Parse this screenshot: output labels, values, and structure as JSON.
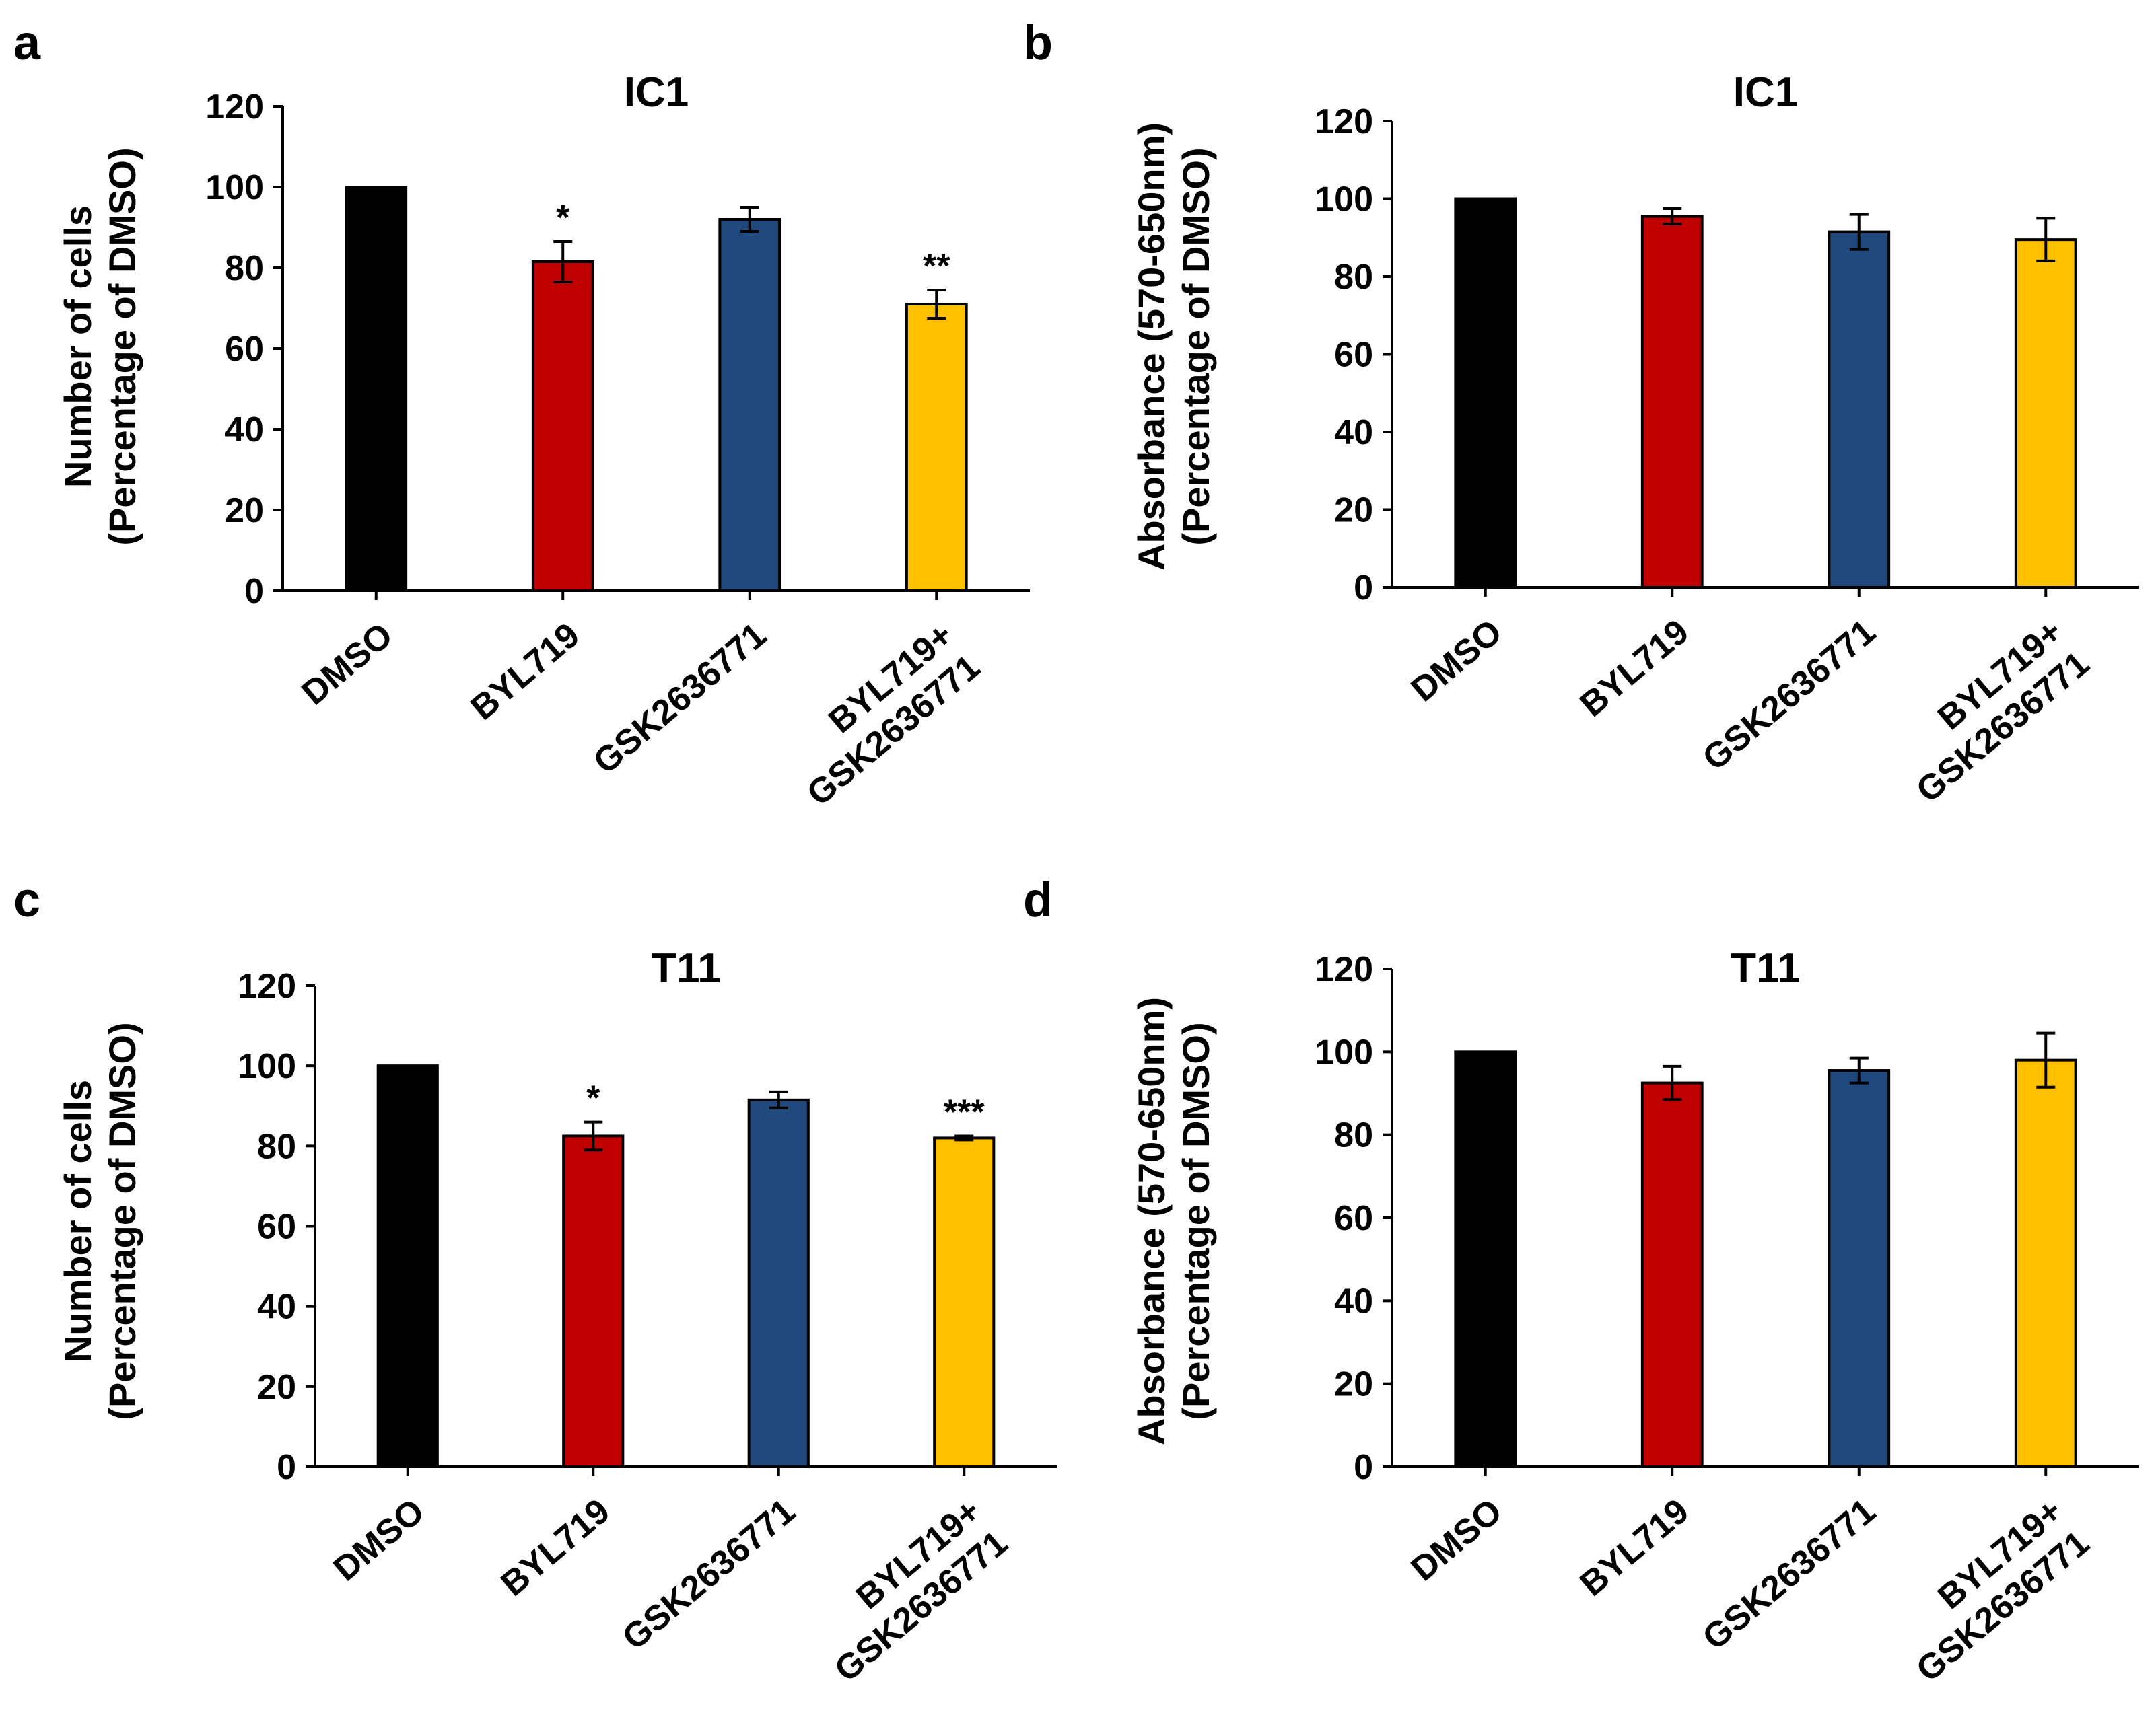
{
  "chart_data": [
    {
      "panel": "a",
      "type": "bar",
      "title": "IC1",
      "ylabel": [
        "Number of cells",
        "(Percentage of DMSO)"
      ],
      "xlabel": "",
      "ylim": [
        0,
        120
      ],
      "yticks": [
        0,
        20,
        40,
        60,
        80,
        100,
        120
      ],
      "categories": [
        [
          "DMSO"
        ],
        [
          "BYL719"
        ],
        [
          "GSK2636771"
        ],
        [
          "BYL719+",
          "GSK2636771"
        ]
      ],
      "values": [
        100,
        81.5,
        92,
        71
      ],
      "errors": [
        0,
        5,
        3,
        3.5
      ],
      "significance": [
        "",
        "*",
        "",
        "**"
      ],
      "colors": [
        "#000000",
        "#c00000",
        "#1f497d",
        "#ffc000"
      ]
    },
    {
      "panel": "b",
      "type": "bar",
      "title": "IC1",
      "ylabel": [
        "Absorbance (570-650nm)",
        "(Percentage of DMSO)"
      ],
      "xlabel": "",
      "ylim": [
        0,
        120
      ],
      "yticks": [
        0,
        20,
        40,
        60,
        80,
        100,
        120
      ],
      "categories": [
        [
          "DMSO"
        ],
        [
          "BYL719"
        ],
        [
          "GSK2636771"
        ],
        [
          "BYL719+",
          "GSK2636771"
        ]
      ],
      "values": [
        100,
        95.5,
        91.5,
        89.5
      ],
      "errors": [
        0,
        2,
        4.5,
        5.5
      ],
      "significance": [
        "",
        "",
        "",
        ""
      ],
      "colors": [
        "#000000",
        "#c00000",
        "#1f497d",
        "#ffc000"
      ]
    },
    {
      "panel": "c",
      "type": "bar",
      "title": "T11",
      "ylabel": [
        "Number of cells",
        "(Percentage of DMSO)"
      ],
      "xlabel": "",
      "ylim": [
        0,
        120
      ],
      "yticks": [
        0,
        20,
        40,
        60,
        80,
        100,
        120
      ],
      "categories": [
        [
          "DMSO"
        ],
        [
          "BYL719"
        ],
        [
          "GSK2636771"
        ],
        [
          "BYL719+",
          "GSK2636771"
        ]
      ],
      "values": [
        100,
        82.5,
        91.5,
        82
      ],
      "errors": [
        0,
        3.5,
        2,
        0.5
      ],
      "significance": [
        "",
        "*",
        "",
        "***"
      ],
      "colors": [
        "#000000",
        "#c00000",
        "#1f497d",
        "#ffc000"
      ]
    },
    {
      "panel": "d",
      "type": "bar",
      "title": "T11",
      "ylabel": [
        "Absorbance (570-650nm)",
        "(Percentage of DMSO)"
      ],
      "xlabel": "",
      "ylim": [
        0,
        120
      ],
      "yticks": [
        0,
        20,
        40,
        60,
        80,
        100,
        120
      ],
      "categories": [
        [
          "DMSO"
        ],
        [
          "BYL719"
        ],
        [
          "GSK2636771"
        ],
        [
          "BYL719+",
          "GSK2636771"
        ]
      ],
      "values": [
        100,
        92.5,
        95.5,
        98
      ],
      "errors": [
        0,
        4,
        3,
        6.5
      ],
      "significance": [
        "",
        "",
        "",
        ""
      ],
      "colors": [
        "#000000",
        "#c00000",
        "#1f497d",
        "#ffc000"
      ]
    }
  ]
}
